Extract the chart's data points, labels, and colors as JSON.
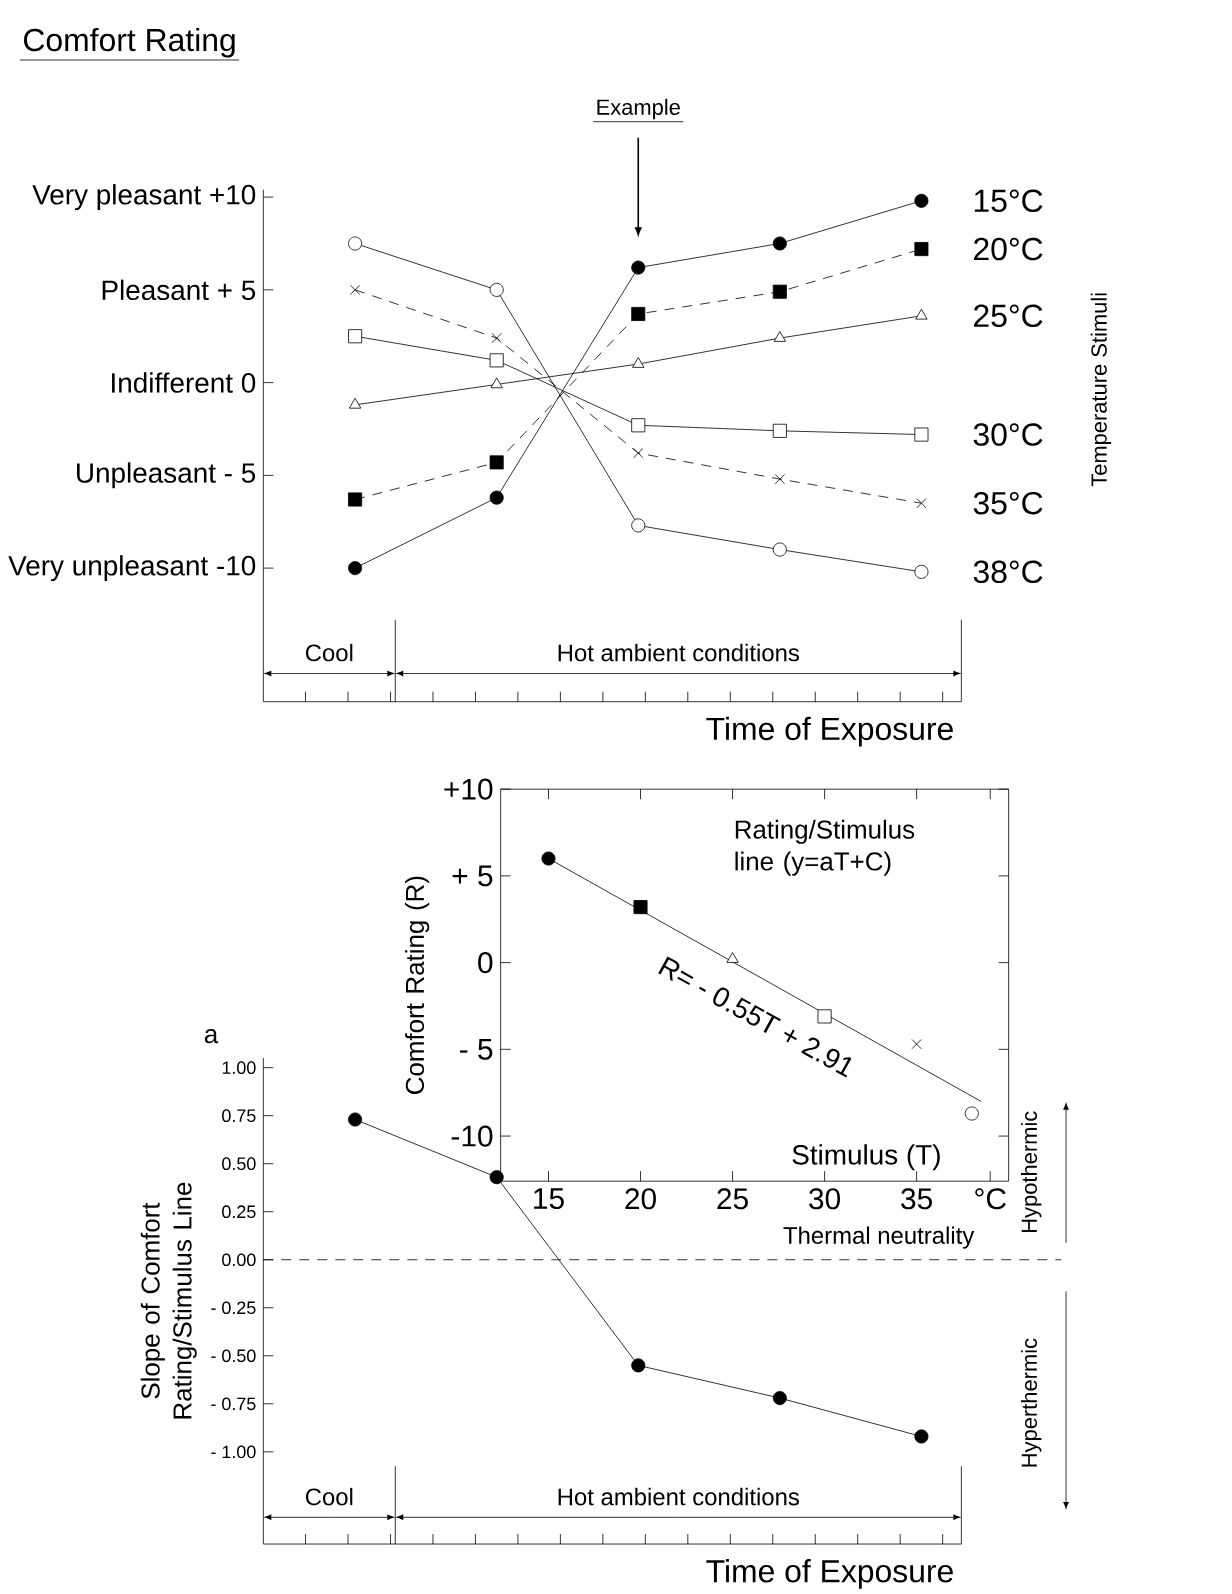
{
  "chart_data": [
    {
      "type": "line",
      "title": "Comfort Rating",
      "xlabel": "Time of Exposure",
      "legend_title": "Temperature Stimuli",
      "legend": "right",
      "tick_labels": "y",
      "categories": [
        null,
        null,
        null,
        null,
        null
      ],
      "ylim": [
        -17.2,
        10.4
      ],
      "yticks": [
        {
          "value": 10,
          "label": "Very pleasant +10"
        },
        {
          "value": 5,
          "label": "Pleasant + 5"
        },
        {
          "value": 0,
          "label": "Indifferent 0"
        },
        {
          "value": -5,
          "label": "Unpleasant - 5"
        },
        {
          "value": -10,
          "label": "Very unpleasant -10"
        }
      ],
      "series": [
        {
          "name": "15°C",
          "color": "#000000",
          "marker": "circle",
          "line_style": "solid",
          "values": [
            -10,
            -6.2,
            6.2,
            7.5,
            9.8
          ]
        },
        {
          "name": "20°C",
          "color": "#000000",
          "marker": "square",
          "line_style": "dashed",
          "values": [
            -6.3,
            -4.3,
            3.7,
            4.9,
            7.2
          ]
        },
        {
          "name": "25°C",
          "color": "#000000",
          "marker": "triangle",
          "line_style": "solid",
          "values": [
            -1.2,
            -0.1,
            1.0,
            2.4,
            3.6
          ]
        },
        {
          "name": "30°C",
          "color": "#000000",
          "marker": "square",
          "line_style": "solid",
          "values": [
            2.5,
            1.2,
            -2.3,
            -2.6,
            -2.8
          ]
        },
        {
          "name": "35°C",
          "color": "#000000",
          "marker": "cross",
          "line_style": "dashed",
          "values": [
            5.0,
            2.4,
            -3.8,
            -5.2,
            -6.5
          ]
        },
        {
          "name": "38°C",
          "color": "#000000",
          "marker": "circle",
          "line_style": "solid",
          "values": [
            7.5,
            5.0,
            -7.7,
            -9.0,
            -10.2
          ]
        }
      ],
      "annotations": [
        "Example",
        "Cool",
        "Hot ambient conditions"
      ]
    },
    {
      "type": "scatter",
      "xlabel": "Stimulus (T)",
      "ylabel": "Comfort Rating (R)",
      "xlim": [
        12.4,
        40
      ],
      "xticks": [
        15,
        20,
        25,
        30,
        35,
        {
          "value": 39,
          "label": "°C"
        }
      ],
      "ylim": [
        -12.6,
        10
      ],
      "yticks": [
        {
          "value": 10,
          "label": "+10"
        },
        {
          "value": 5,
          "label": "+ 5"
        },
        0,
        {
          "value": -5,
          "label": "- 5"
        },
        -10
      ],
      "series": [
        {
          "color": "#000000",
          "marker": "circle",
          "x": [
            15
          ],
          "values": [
            6.0
          ]
        },
        {
          "color": "#000000",
          "marker": "square",
          "x": [
            20
          ],
          "values": [
            3.2
          ]
        },
        {
          "color": "#000000",
          "marker": "triangle",
          "x": [
            25
          ],
          "values": [
            0.2
          ]
        },
        {
          "color": "#000000",
          "marker": "square",
          "x": [
            30
          ],
          "values": [
            -3.1
          ]
        },
        {
          "color": "#000000",
          "marker": "cross",
          "x": [
            35
          ],
          "values": [
            -4.7
          ]
        },
        {
          "color": "#000000",
          "marker": "circle",
          "x": [
            38
          ],
          "values": [
            -8.7
          ]
        },
        {
          "type": "line",
          "color": "#000000",
          "marker": "none",
          "x": [
            15,
            38.5
          ],
          "values": [
            6.0,
            -8.0
          ]
        }
      ],
      "annotations": [
        "Rating/Stimulus line (y=aT+C)",
        {
          "text": "R= - 0.55T + 2.91",
          "x": 26.3,
          "y": -0.7
        }
      ]
    },
    {
      "type": "line",
      "xlabel": "Time of Exposure",
      "ylabel": "Slope of Comfort Rating/Stimulus Line",
      "tick_labels": "y",
      "categories": [
        null,
        null,
        null,
        null,
        null
      ],
      "values": [
        0.73,
        0.43,
        -0.55,
        -0.72,
        -0.92
      ],
      "color": "#000000",
      "marker": "circle",
      "ylim": [
        -1.48,
        1.05
      ],
      "yticks": [
        {
          "value": 1,
          "label": "1.00"
        },
        {
          "value": 0.75,
          "label": "0.75"
        },
        {
          "value": 0.5,
          "label": "0.50"
        },
        {
          "value": 0.25,
          "label": "0.25"
        },
        {
          "value": 0,
          "label": "0.00"
        },
        {
          "value": -0.25,
          "label": "- 0.25"
        },
        {
          "value": -0.5,
          "label": "- 0.50"
        },
        {
          "value": -0.75,
          "label": "- 0.75"
        },
        {
          "value": -1,
          "label": "- 1.00"
        }
      ],
      "ref_lines": [
        {
          "axis": "y",
          "value": 0,
          "label": "Thermal neutrality",
          "line_style": "dashed"
        }
      ],
      "annotations": [
        "a",
        "Hypothermic",
        "Hyperthermic",
        "Cool",
        "Hot ambient conditions"
      ]
    }
  ]
}
